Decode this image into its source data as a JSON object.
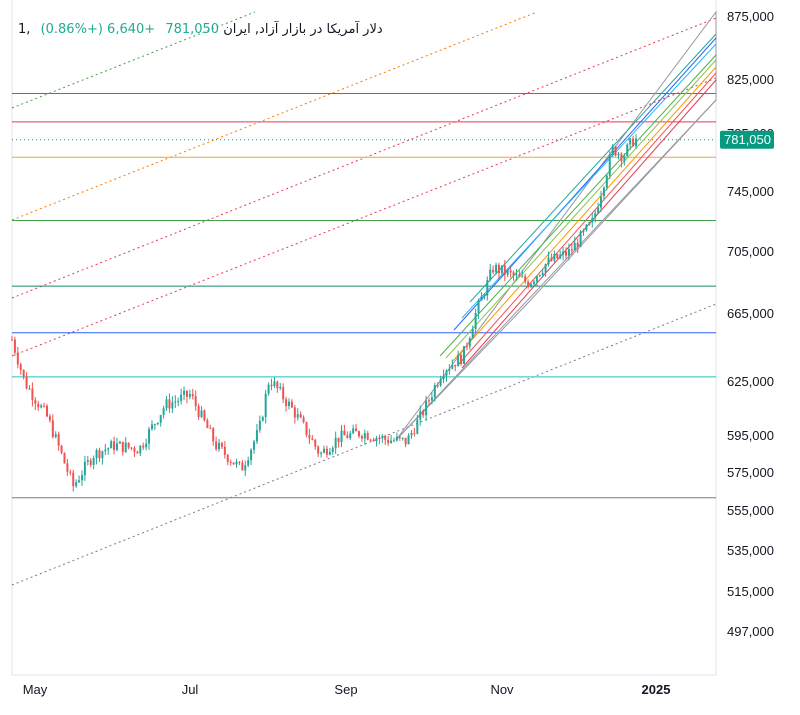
{
  "header": {
    "interval": "1",
    "symbol_title": "دلار آمریکا در بازار آزاد, ایران",
    "last_price": "781,050",
    "change": "+6,640 (+0.86%)"
  },
  "price_badge": "781,050",
  "colors": {
    "up": "#26a69a",
    "down": "#ef5350",
    "badge": "#089981",
    "axis_text": "#131722"
  },
  "chart_data": {
    "type": "candlestick",
    "title": "",
    "xlabel": "",
    "ylabel": "",
    "y_ticks": [
      "875,000",
      "825,000",
      "785,000",
      "745,000",
      "705,000",
      "665,000",
      "625,000",
      "595,000",
      "575,000",
      "555,000",
      "535,000",
      "515,000",
      "497,000"
    ],
    "x_ticks": [
      "May",
      "Jul",
      "Sep",
      "Nov",
      "2025"
    ],
    "x_ticks_bold": [
      "2025"
    ],
    "ohlc_close_approx": [
      [
        "2024-04-26",
        650000
      ],
      [
        "2024-05-01",
        625000
      ],
      [
        "2024-05-10",
        605000
      ],
      [
        "2024-05-20",
        568000
      ],
      [
        "2024-05-28",
        585000
      ],
      [
        "2024-06-05",
        590000
      ],
      [
        "2024-06-15",
        588000
      ],
      [
        "2024-06-25",
        612000
      ],
      [
        "2024-07-05",
        618000
      ],
      [
        "2024-07-15",
        590000
      ],
      [
        "2024-07-25",
        577000
      ],
      [
        "2024-08-01",
        598000
      ],
      [
        "2024-08-05",
        627000
      ],
      [
        "2024-08-15",
        608000
      ],
      [
        "2024-08-25",
        585000
      ],
      [
        "2024-09-01",
        594000
      ],
      [
        "2024-09-10",
        597000
      ],
      [
        "2024-09-20",
        593000
      ],
      [
        "2024-09-28",
        592000
      ],
      [
        "2024-10-05",
        610000
      ],
      [
        "2024-10-12",
        632000
      ],
      [
        "2024-10-20",
        640000
      ],
      [
        "2024-10-25",
        665000
      ],
      [
        "2024-11-01",
        695000
      ],
      [
        "2024-11-08",
        690000
      ],
      [
        "2024-11-15",
        685000
      ],
      [
        "2024-11-22",
        698000
      ],
      [
        "2024-12-01",
        705000
      ],
      [
        "2024-12-10",
        725000
      ],
      [
        "2024-12-18",
        775000
      ],
      [
        "2024-12-22",
        770000
      ],
      [
        "2024-12-26",
        781050
      ]
    ],
    "horizontal_levels": [
      {
        "price": 815000,
        "color": "#e53950"
      },
      {
        "price": 794000,
        "color": "#e53950"
      },
      {
        "price": 769000,
        "color": "#f5a623"
      },
      {
        "price": 726000,
        "color": "#43a047"
      },
      {
        "price": 683000,
        "color": "#138a6a"
      },
      {
        "price": 654000,
        "color": "#2962ff"
      },
      {
        "price": 628000,
        "color": "#22c1c3"
      },
      {
        "price": 562000,
        "color": "#787b86"
      }
    ],
    "ylim": [
      490000,
      880000
    ],
    "grid": false,
    "legend": "none"
  }
}
